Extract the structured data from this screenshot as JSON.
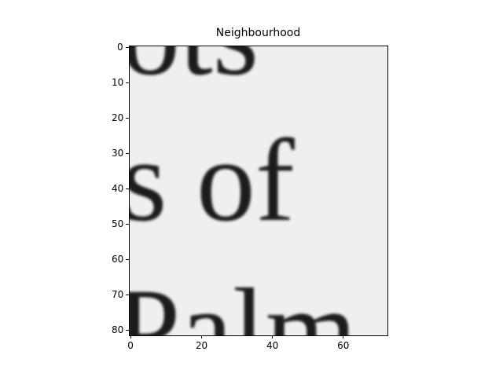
{
  "chart_data": {
    "type": "heatmap",
    "title": "Neighbourhood",
    "colormap": "gray",
    "x_ticks": [
      0,
      20,
      40,
      60
    ],
    "y_ticks": [
      0,
      10,
      20,
      30,
      40,
      50,
      60,
      70,
      80
    ],
    "xlim": [
      -0.5,
      72.5
    ],
    "ylim": [
      81.5,
      -0.5
    ],
    "image_content": {
      "description_text_fragments": [
        "ots",
        "s of",
        "Palm"
      ]
    }
  }
}
